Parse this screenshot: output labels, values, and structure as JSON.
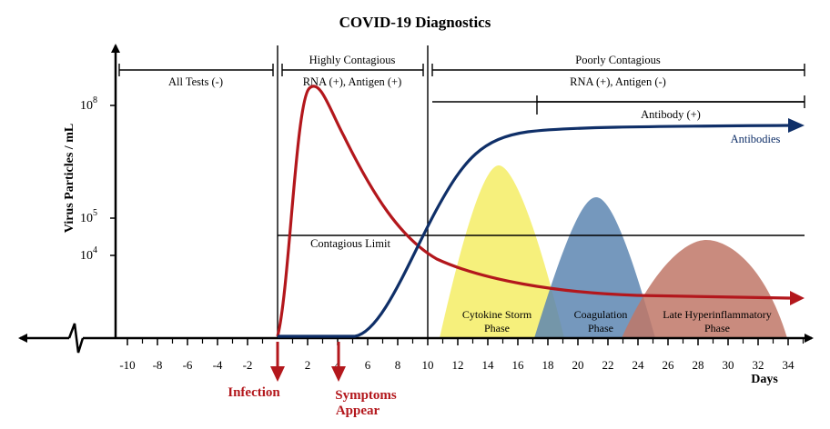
{
  "title": "COVID-19 Diagnostics",
  "y_axis_label": "Virus Particles / mL",
  "x_axis_unit": "Days",
  "y_ticks": [
    {
      "base": "10",
      "exp": "8"
    },
    {
      "base": "10",
      "exp": "5"
    },
    {
      "base": "10",
      "exp": "4"
    }
  ],
  "x_ticks": [
    "-10",
    "-8",
    "-6",
    "-4",
    "-2",
    "2",
    "4",
    "6",
    "8",
    "10",
    "12",
    "14",
    "16",
    "18",
    "20",
    "22",
    "24",
    "26",
    "28",
    "30",
    "32",
    "34"
  ],
  "phases": {
    "all_tests": "All Tests (-)",
    "highly_contagious": "Highly Contagious",
    "highly_tests": "RNA (+), Antigen (+)",
    "poorly_contagious": "Poorly Contagious",
    "poorly_tests": "RNA (+), Antigen (-)",
    "antibody": "Antibody (+)"
  },
  "contagious_limit": "Contagious Limit",
  "events": {
    "infection": "Infection",
    "symptoms_line1": "Symptoms",
    "symptoms_line2": "Appear"
  },
  "curves": {
    "antibodies": "Antibodies"
  },
  "immune_phases": [
    {
      "line1": "Cytokine Storm",
      "line2": "Phase",
      "color": "#f5ee6e"
    },
    {
      "line1": "Coagulation",
      "line2": "Phase",
      "color": "#6a8fb4"
    },
    {
      "line1": "Late Hyperinflammatory",
      "line2": "Phase",
      "color": "#c9857a"
    }
  ],
  "colors": {
    "virus": "#b3171c",
    "antibody": "#0f2f68",
    "axis": "#000000"
  }
}
